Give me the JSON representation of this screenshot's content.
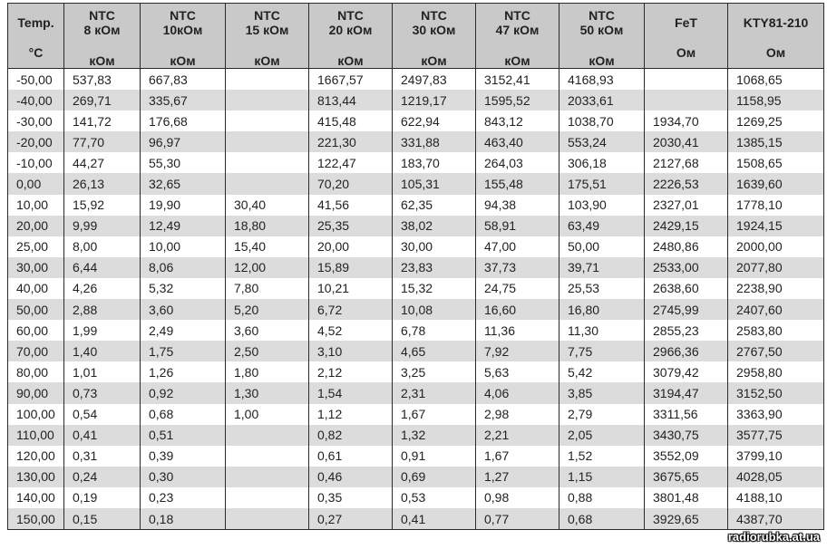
{
  "headers": [
    {
      "l1": "Temp.",
      "l2": "",
      "unit": "°C"
    },
    {
      "l1": "NTC",
      "l2": "8 кОм",
      "unit": "кОм"
    },
    {
      "l1": "NTC",
      "l2": "10кОм",
      "unit": "кОм"
    },
    {
      "l1": "NTC",
      "l2": "15 кОм",
      "unit": "кОм"
    },
    {
      "l1": "NTC",
      "l2": "20 кОм",
      "unit": "кОм"
    },
    {
      "l1": "NTC",
      "l2": "30 кОм",
      "unit": "кОм"
    },
    {
      "l1": "NTC",
      "l2": "47 кОм",
      "unit": "кОм"
    },
    {
      "l1": "NTC",
      "l2": "50 кОм",
      "unit": "кОм"
    },
    {
      "l1": "FeT",
      "l2": "",
      "unit": "Ом"
    },
    {
      "l1": "KTY81-210",
      "l2": "",
      "unit": "Ом"
    }
  ],
  "rows": [
    [
      "-50,00",
      "537,83",
      "667,83",
      "",
      "1667,57",
      "2497,83",
      "3152,41",
      "4168,93",
      "",
      "1068,65"
    ],
    [
      "-40,00",
      "269,71",
      "335,67",
      "",
      "813,44",
      "1219,17",
      "1595,52",
      "2033,61",
      "",
      "1158,95"
    ],
    [
      "-30,00",
      "141,72",
      "176,68",
      "",
      "415,48",
      "622,94",
      "843,12",
      "1038,70",
      "1934,70",
      "1269,25"
    ],
    [
      "-20,00",
      "77,70",
      "96,97",
      "",
      "221,30",
      "331,88",
      "463,40",
      "553,24",
      "2030,41",
      "1385,15"
    ],
    [
      "-10,00",
      "44,27",
      "55,30",
      "",
      "122,47",
      "183,70",
      "264,03",
      "306,18",
      "2127,68",
      "1508,65"
    ],
    [
      "0,00",
      "26,13",
      "32,65",
      "",
      "70,20",
      "105,31",
      "155,48",
      "175,51",
      "2226,53",
      "1639,60"
    ],
    [
      "10,00",
      "15,92",
      "19,90",
      "30,40",
      "41,56",
      "62,35",
      "94,38",
      "103,90",
      "2327,01",
      "1778,10"
    ],
    [
      "20,00",
      "9,99",
      "12,49",
      "18,80",
      "25,35",
      "38,02",
      "58,91",
      "63,49",
      "2429,15",
      "1924,15"
    ],
    [
      "25,00",
      "8,00",
      "10,00",
      "15,40",
      "20,00",
      "30,00",
      "47,00",
      "50,00",
      "2480,86",
      "2000,00"
    ],
    [
      "30,00",
      "6,44",
      "8,06",
      "12,00",
      "15,89",
      "23,83",
      "37,73",
      "39,71",
      "2533,00",
      "2077,80"
    ],
    [
      "40,00",
      "4,26",
      "5,32",
      "7,80",
      "10,21",
      "15,32",
      "24,75",
      "25,53",
      "2638,60",
      "2238,90"
    ],
    [
      "50,00",
      "2,88",
      "3,60",
      "5,20",
      "6,72",
      "10,08",
      "16,60",
      "16,80",
      "2745,99",
      "2407,60"
    ],
    [
      "60,00",
      "1,99",
      "2,49",
      "3,60",
      "4,52",
      "6,78",
      "11,36",
      "11,30",
      "2855,23",
      "2583,80"
    ],
    [
      "70,00",
      "1,40",
      "1,75",
      "2,50",
      "3,10",
      "4,65",
      "7,92",
      "7,75",
      "2966,36",
      "2767,50"
    ],
    [
      "80,00",
      "1,01",
      "1,26",
      "1,80",
      "2,12",
      "3,25",
      "5,63",
      "5,42",
      "3079,42",
      "2958,80"
    ],
    [
      "90,00",
      "0,73",
      "0,92",
      "1,30",
      "1,54",
      "2,31",
      "4,06",
      "3,85",
      "3194,47",
      "3152,50"
    ],
    [
      "100,00",
      "0,54",
      "0,68",
      "1,00",
      "1,12",
      "1,67",
      "2,98",
      "2,79",
      "3311,56",
      "3363,90"
    ],
    [
      "110,00",
      "0,41",
      "0,51",
      "",
      "0,82",
      "1,32",
      "2,21",
      "2,05",
      "3430,75",
      "3577,75"
    ],
    [
      "120,00",
      "0,31",
      "0,39",
      "",
      "0,61",
      "0,91",
      "1,67",
      "1,52",
      "3552,09",
      "3799,10"
    ],
    [
      "130,00",
      "0,24",
      "0,30",
      "",
      "0,46",
      "0,69",
      "1,27",
      "1,15",
      "3675,65",
      "4028,05"
    ],
    [
      "140,00",
      "0,19",
      "0,23",
      "",
      "0,35",
      "0,53",
      "0,98",
      "0,88",
      "3801,48",
      "4188,10"
    ],
    [
      "150,00",
      "0,15",
      "0,18",
      "",
      "0,27",
      "0,41",
      "0,77",
      "0,68",
      "3929,65",
      "4387,70"
    ]
  ],
  "watermark": "radiorubka.at.ua"
}
